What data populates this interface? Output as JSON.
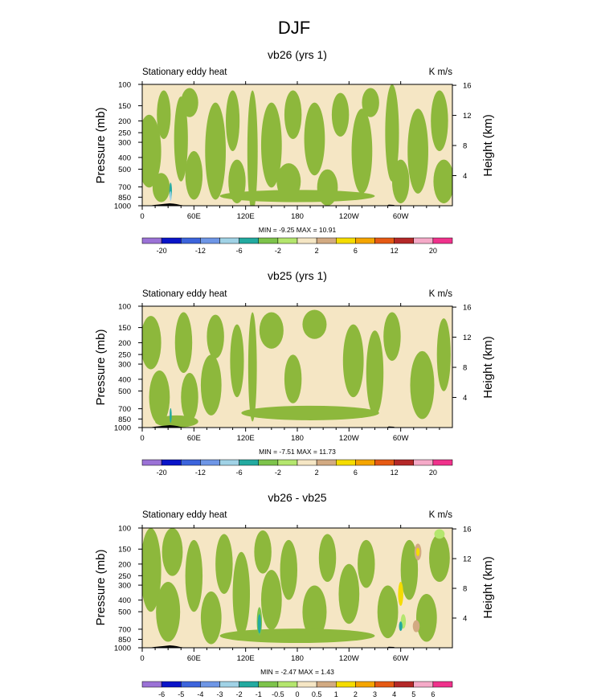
{
  "figure": {
    "title": "DJF"
  },
  "palette": {
    "land_color": "#000000",
    "green": "#8db83c",
    "cream": "#f5e6c4"
  },
  "chart_data": [
    {
      "type": "heatmap",
      "title": "vb26 (yrs 1)",
      "left_title": "Stationary eddy heat",
      "right_title": "K m/s",
      "ylabel": "Pressure (mb)",
      "ylabel_right": "Height (km)",
      "x_ticks": [
        "0",
        "60E",
        "120E",
        "180",
        "120W",
        "60W"
      ],
      "x_tick_values": [
        0,
        60,
        120,
        180,
        240,
        300
      ],
      "xlim": [
        0,
        360
      ],
      "y_ticks": [
        "100",
        "150",
        "200",
        "250",
        "300",
        "400",
        "500",
        "700",
        "850",
        "1000"
      ],
      "y_tick_values": [
        100,
        150,
        200,
        250,
        300,
        400,
        500,
        700,
        850,
        1000
      ],
      "ylim": [
        1000,
        100
      ],
      "right_ticks": [
        "4",
        "8",
        "12",
        "16"
      ],
      "right_tick_values": [
        4,
        8,
        12,
        16
      ],
      "stats": "MIN =  -9.25  MAX =  10.91",
      "min": -9.25,
      "max": 10.91,
      "colorbar_labels": [
        "-20",
        "-12",
        "-6",
        "-2",
        "2",
        "6",
        "12",
        "20"
      ],
      "colorbar_label_boxes": [
        1,
        3,
        5,
        7,
        9,
        11,
        13,
        15
      ],
      "colorbar_colors": [
        "#9b72d6",
        "#0a14c8",
        "#3c64dc",
        "#6e96e6",
        "#a0d2e6",
        "#23aaa0",
        "#7dc34b",
        "#b4e66e",
        "#f5e6c4",
        "#d2aa82",
        "#f5dc00",
        "#f5a500",
        "#e65a14",
        "#b42828",
        "#f5aac8",
        "#f0328c"
      ],
      "fields": {
        "green_blobs": [
          [
            8,
            0.55,
            14,
            0.3,
            0
          ],
          [
            25,
            0.25,
            8,
            0.2,
            0
          ],
          [
            22,
            0.85,
            10,
            0.12,
            0
          ],
          [
            45,
            0.45,
            8,
            0.35,
            0
          ],
          [
            60,
            0.75,
            10,
            0.2,
            0
          ],
          [
            55,
            0.15,
            10,
            0.12,
            0
          ],
          [
            85,
            0.55,
            12,
            0.4,
            0
          ],
          [
            105,
            0.3,
            8,
            0.25,
            0
          ],
          [
            110,
            0.8,
            10,
            0.18,
            0
          ],
          [
            128,
            0.55,
            6,
            0.5,
            0
          ],
          [
            150,
            0.5,
            12,
            0.35,
            0
          ],
          [
            175,
            0.25,
            10,
            0.2,
            0
          ],
          [
            170,
            0.8,
            14,
            0.15,
            0
          ],
          [
            200,
            0.45,
            12,
            0.3,
            0
          ],
          [
            215,
            0.85,
            12,
            0.15,
            0
          ],
          [
            230,
            0.25,
            10,
            0.18,
            0
          ],
          [
            255,
            0.55,
            12,
            0.35,
            0
          ],
          [
            265,
            0.15,
            10,
            0.12,
            0
          ],
          [
            290,
            0.4,
            8,
            0.4,
            0
          ],
          [
            300,
            0.8,
            10,
            0.18,
            0
          ],
          [
            320,
            0.55,
            12,
            0.35,
            0
          ],
          [
            345,
            0.3,
            10,
            0.25,
            0
          ],
          [
            350,
            0.8,
            12,
            0.18,
            0
          ],
          [
            180,
            0.92,
            90,
            0.05,
            0
          ]
        ],
        "small_blobs": [
          [
            33,
            0.88,
            1.5,
            0.07,
            "#23aaa0"
          ],
          [
            33,
            0.92,
            1,
            0.04,
            "#a0d2e6"
          ]
        ]
      }
    },
    {
      "type": "heatmap",
      "title": "vb25 (yrs 1)",
      "left_title": "Stationary eddy heat",
      "right_title": "K m/s",
      "ylabel": "Pressure (mb)",
      "ylabel_right": "Height (km)",
      "x_ticks": [
        "0",
        "60E",
        "120E",
        "180",
        "120W",
        "60W"
      ],
      "x_tick_values": [
        0,
        60,
        120,
        180,
        240,
        300
      ],
      "xlim": [
        0,
        360
      ],
      "y_ticks": [
        "100",
        "150",
        "200",
        "250",
        "300",
        "400",
        "500",
        "700",
        "850",
        "1000"
      ],
      "y_tick_values": [
        100,
        150,
        200,
        250,
        300,
        400,
        500,
        700,
        850,
        1000
      ],
      "ylim": [
        1000,
        100
      ],
      "right_ticks": [
        "4",
        "8",
        "12",
        "16"
      ],
      "right_tick_values": [
        4,
        8,
        12,
        16
      ],
      "stats": "MIN =  -7.51  MAX =  11.73",
      "min": -7.51,
      "max": 11.73,
      "colorbar_labels": [
        "-20",
        "-12",
        "-6",
        "-2",
        "2",
        "6",
        "12",
        "20"
      ],
      "colorbar_label_boxes": [
        1,
        3,
        5,
        7,
        9,
        11,
        13,
        15
      ],
      "colorbar_colors": [
        "#9b72d6",
        "#0a14c8",
        "#3c64dc",
        "#6e96e6",
        "#a0d2e6",
        "#23aaa0",
        "#7dc34b",
        "#b4e66e",
        "#f5e6c4",
        "#d2aa82",
        "#f5dc00",
        "#f5a500",
        "#e65a14",
        "#b42828",
        "#f5aac8",
        "#f0328c"
      ],
      "fields": {
        "green_blobs": [
          [
            10,
            0.3,
            12,
            0.22,
            0
          ],
          [
            20,
            0.75,
            12,
            0.22,
            0
          ],
          [
            48,
            0.3,
            10,
            0.25,
            0
          ],
          [
            55,
            0.75,
            10,
            0.2,
            0
          ],
          [
            85,
            0.25,
            10,
            0.18,
            0
          ],
          [
            80,
            0.65,
            12,
            0.25,
            0
          ],
          [
            110,
            0.45,
            8,
            0.3,
            0
          ],
          [
            128,
            0.5,
            5,
            0.45,
            0
          ],
          [
            150,
            0.2,
            14,
            0.15,
            0
          ],
          [
            175,
            0.6,
            10,
            0.2,
            0
          ],
          [
            200,
            0.15,
            14,
            0.12,
            0
          ],
          [
            245,
            0.45,
            12,
            0.3,
            0
          ],
          [
            270,
            0.55,
            10,
            0.35,
            0
          ],
          [
            290,
            0.25,
            10,
            0.2,
            0
          ],
          [
            325,
            0.65,
            14,
            0.28,
            0
          ],
          [
            350,
            0.4,
            8,
            0.3,
            0
          ],
          [
            195,
            0.88,
            80,
            0.06,
            0
          ],
          [
            40,
            0.95,
            25,
            0.05,
            0
          ]
        ],
        "small_blobs": [
          [
            33,
            0.9,
            1.2,
            0.06,
            "#23aaa0"
          ]
        ]
      }
    },
    {
      "type": "heatmap",
      "title": "vb26 - vb25",
      "left_title": "Stationary eddy heat",
      "right_title": "K m/s",
      "ylabel": "Pressure (mb)",
      "ylabel_right": "Height (km)",
      "x_ticks": [
        "0",
        "60E",
        "120E",
        "180",
        "120W",
        "60W"
      ],
      "x_tick_values": [
        0,
        60,
        120,
        180,
        240,
        300
      ],
      "xlim": [
        0,
        360
      ],
      "y_ticks": [
        "100",
        "150",
        "200",
        "250",
        "300",
        "400",
        "500",
        "700",
        "850",
        "1000"
      ],
      "y_tick_values": [
        100,
        150,
        200,
        250,
        300,
        400,
        500,
        700,
        850,
        1000
      ],
      "ylim": [
        1000,
        100
      ],
      "right_ticks": [
        "4",
        "8",
        "12",
        "16"
      ],
      "right_tick_values": [
        4,
        8,
        12,
        16
      ],
      "stats": "MIN =  -2.47  MAX =  1.43",
      "min": -2.47,
      "max": 1.43,
      "colorbar_labels": [
        "-6",
        "-5",
        "-4",
        "-3",
        "-2",
        "-1",
        "-0.5",
        "0",
        "0.5",
        "1",
        "2",
        "3",
        "4",
        "5",
        "6"
      ],
      "colorbar_label_boxes": [
        1,
        2,
        3,
        4,
        5,
        6,
        7,
        8,
        9,
        10,
        11,
        12,
        13,
        14,
        15
      ],
      "colorbar_colors": [
        "#9b72d6",
        "#0a14c8",
        "#3c64dc",
        "#6e96e6",
        "#a0d2e6",
        "#23aaa0",
        "#7dc34b",
        "#b4e66e",
        "#f5e6c4",
        "#d2aa82",
        "#f5dc00",
        "#f5a500",
        "#e65a14",
        "#b42828",
        "#f5aac8",
        "#f0328c"
      ],
      "fields": {
        "green_blobs": [
          [
            10,
            0.35,
            12,
            0.35,
            0
          ],
          [
            35,
            0.2,
            12,
            0.2,
            0
          ],
          [
            30,
            0.7,
            14,
            0.25,
            0
          ],
          [
            60,
            0.4,
            10,
            0.3,
            0
          ],
          [
            80,
            0.75,
            12,
            0.22,
            0
          ],
          [
            95,
            0.3,
            10,
            0.25,
            0
          ],
          [
            115,
            0.55,
            10,
            0.35,
            0
          ],
          [
            140,
            0.2,
            10,
            0.18,
            0
          ],
          [
            150,
            0.6,
            12,
            0.25,
            0
          ],
          [
            170,
            0.35,
            10,
            0.25,
            0
          ],
          [
            200,
            0.7,
            14,
            0.22,
            0
          ],
          [
            215,
            0.25,
            10,
            0.2,
            0
          ],
          [
            240,
            0.55,
            12,
            0.25,
            0
          ],
          [
            260,
            0.3,
            10,
            0.2,
            0
          ],
          [
            285,
            0.7,
            12,
            0.22,
            0
          ],
          [
            310,
            0.35,
            10,
            0.25,
            0
          ],
          [
            330,
            0.75,
            12,
            0.2,
            0
          ],
          [
            345,
            0.25,
            12,
            0.2,
            0
          ],
          [
            180,
            0.9,
            90,
            0.06,
            0
          ]
        ],
        "small_blobs": [
          [
            136,
            0.78,
            3,
            0.12,
            "#7dc34b"
          ],
          [
            136,
            0.8,
            2,
            0.08,
            "#23aaa0"
          ],
          [
            300,
            0.55,
            3,
            0.1,
            "#f5dc00"
          ],
          [
            303,
            0.78,
            3,
            0.06,
            "#b4e66e"
          ],
          [
            318,
            0.82,
            4,
            0.05,
            "#d2aa82"
          ],
          [
            320,
            0.2,
            4,
            0.07,
            "#d2aa82"
          ],
          [
            320,
            0.2,
            2,
            0.035,
            "#f5dc00"
          ],
          [
            345,
            0.05,
            6,
            0.04,
            "#b4e66e"
          ],
          [
            300,
            0.82,
            2,
            0.04,
            "#23aaa0"
          ]
        ]
      }
    }
  ]
}
